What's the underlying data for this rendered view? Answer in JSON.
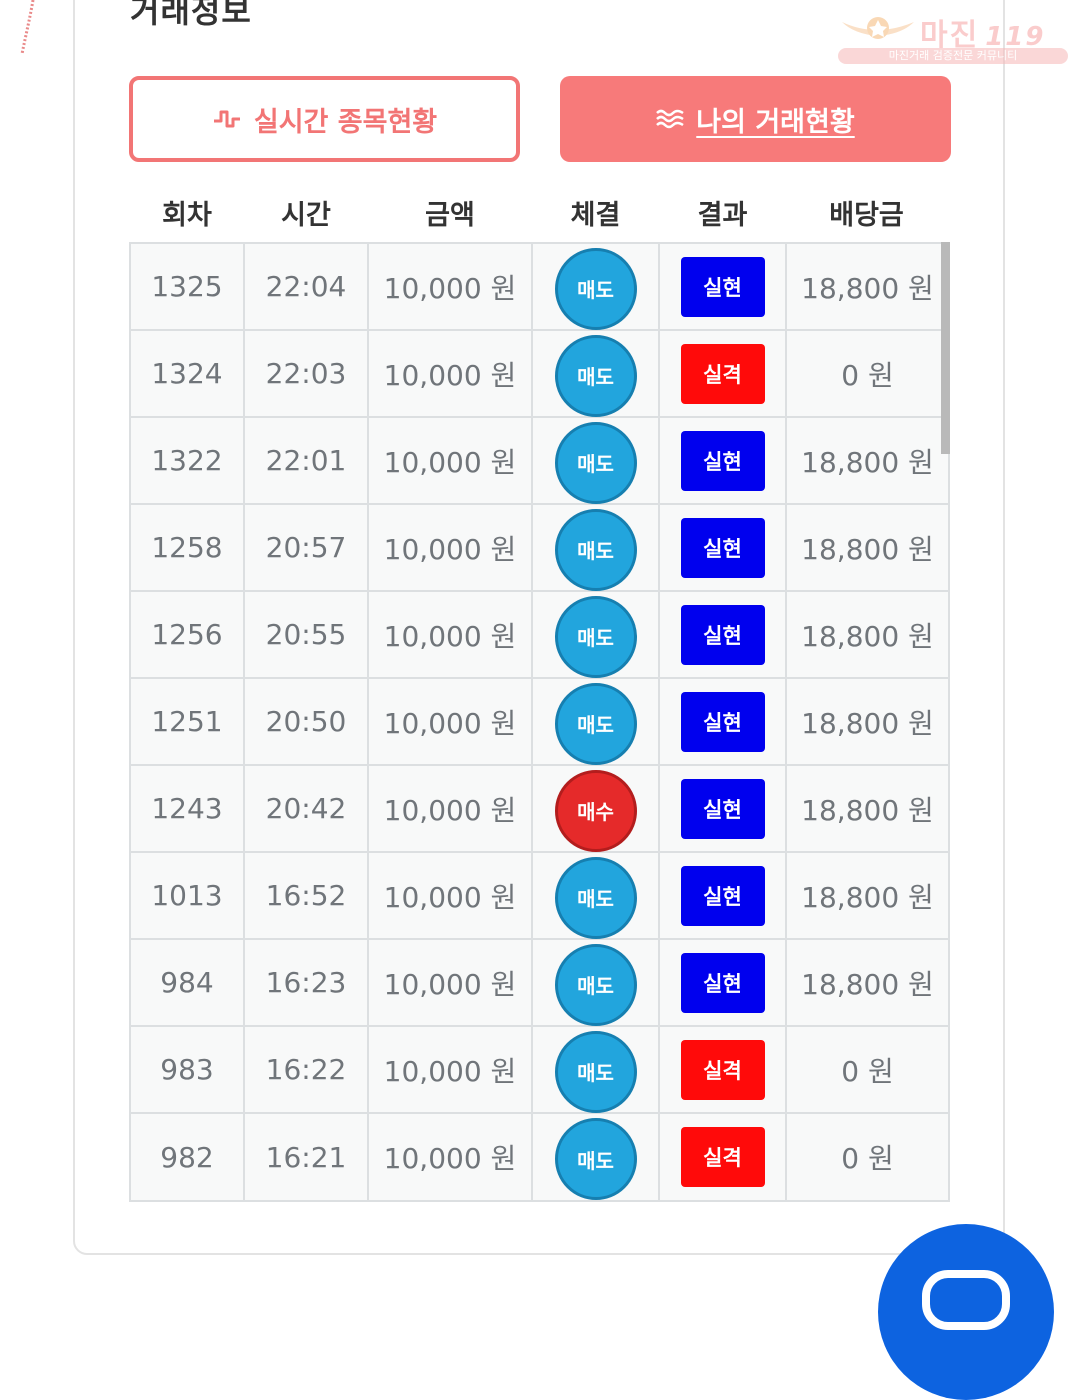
{
  "section": {
    "title": "거래정보"
  },
  "watermark": {
    "title": "마진",
    "suffix": "119",
    "subtitle": "마진거래 검증전문 커뮤니티"
  },
  "tabs": {
    "realtime": {
      "label": "실시간 종목현황",
      "icon": "pulse-icon"
    },
    "mytrades": {
      "label": "나의 거래현황",
      "icon": "waves-icon"
    }
  },
  "table": {
    "headers": [
      "회차",
      "시간",
      "금액",
      "체결",
      "결과",
      "배당금"
    ],
    "rows": [
      {
        "round": "1325",
        "time": "22:04",
        "amount": "10,000 원",
        "side": "매도",
        "result": "실현",
        "payout": "18,800 원"
      },
      {
        "round": "1324",
        "time": "22:03",
        "amount": "10,000 원",
        "side": "매도",
        "result": "실격",
        "payout": "0 원"
      },
      {
        "round": "1322",
        "time": "22:01",
        "amount": "10,000 원",
        "side": "매도",
        "result": "실현",
        "payout": "18,800 원"
      },
      {
        "round": "1258",
        "time": "20:57",
        "amount": "10,000 원",
        "side": "매도",
        "result": "실현",
        "payout": "18,800 원"
      },
      {
        "round": "1256",
        "time": "20:55",
        "amount": "10,000 원",
        "side": "매도",
        "result": "실현",
        "payout": "18,800 원"
      },
      {
        "round": "1251",
        "time": "20:50",
        "amount": "10,000 원",
        "side": "매도",
        "result": "실현",
        "payout": "18,800 원"
      },
      {
        "round": "1243",
        "time": "20:42",
        "amount": "10,000 원",
        "side": "매수",
        "result": "실현",
        "payout": "18,800 원"
      },
      {
        "round": "1013",
        "time": "16:52",
        "amount": "10,000 원",
        "side": "매도",
        "result": "실현",
        "payout": "18,800 원"
      },
      {
        "round": "984",
        "time": "16:23",
        "amount": "10,000 원",
        "side": "매도",
        "result": "실현",
        "payout": "18,800 원"
      },
      {
        "round": "983",
        "time": "16:22",
        "amount": "10,000 원",
        "side": "매도",
        "result": "실격",
        "payout": "0 원"
      },
      {
        "round": "982",
        "time": "16:21",
        "amount": "10,000 원",
        "side": "매도",
        "result": "실격",
        "payout": "0 원"
      }
    ]
  },
  "colors": {
    "accent": "#f27575",
    "sell": "#22a5dd",
    "buy": "#e52a2a",
    "win": "#0000ee",
    "lose": "#ff0a0a",
    "fab": "#0d63e0"
  },
  "fab": {
    "icon": "chat-icon"
  }
}
